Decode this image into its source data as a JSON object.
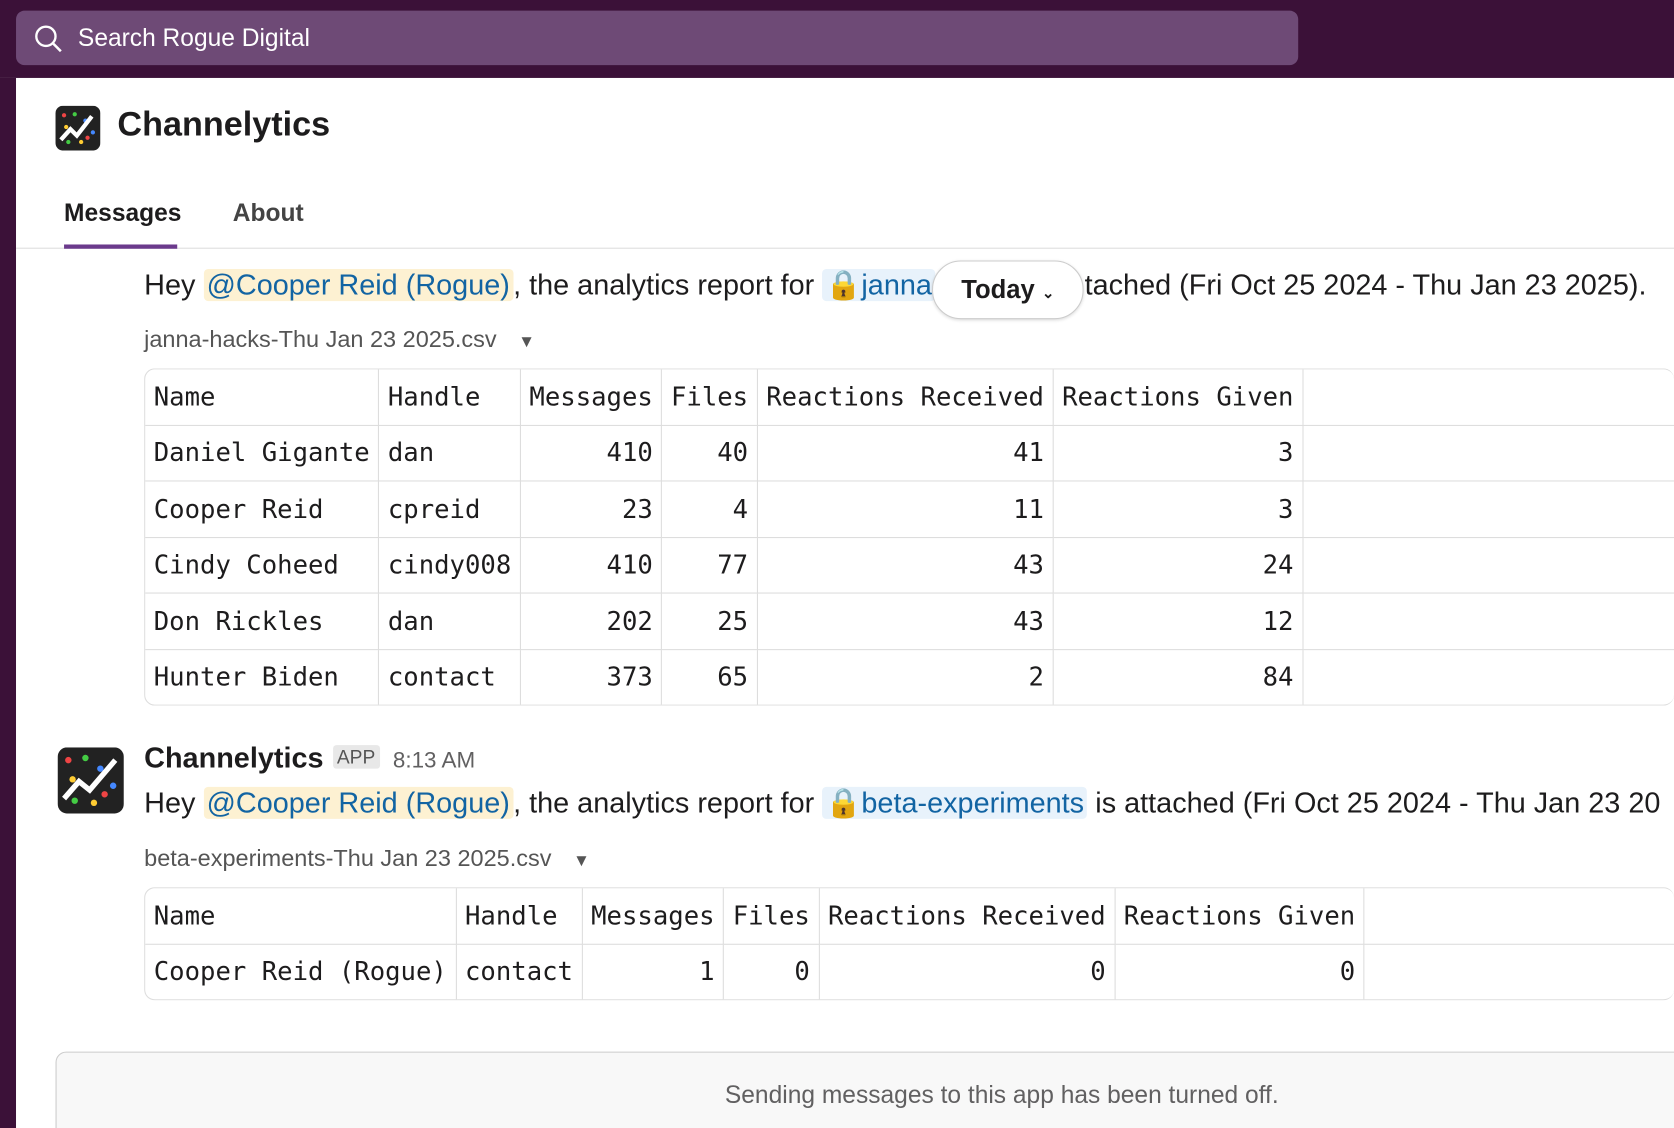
{
  "search": {
    "placeholder": "Search Rogue Digital"
  },
  "app": {
    "name": "Channelytics",
    "tabs": [
      "Messages",
      "About"
    ]
  },
  "date_pill": "Today",
  "messages": [
    {
      "text": {
        "intro": "Hey ",
        "mention": "@Cooper Reid (Rogue)",
        "mid": ", the analytics report for ",
        "channel": "janna",
        "rest": "tached (Fri Oct 25 2024 - Thu Jan 23 2025)."
      },
      "file": "janna-hacks-Thu Jan 23 2025.csv",
      "table": {
        "header": [
          "Name",
          "Handle",
          "Messages",
          "Files",
          "Reactions Received",
          "Reactions Given"
        ],
        "rows": [
          [
            "Daniel Gigante",
            "dan",
            410,
            40,
            41,
            3
          ],
          [
            "Cooper Reid",
            "cpreid",
            23,
            4,
            11,
            3
          ],
          [
            "Cindy Coheed",
            "cindy008",
            410,
            77,
            43,
            24
          ],
          [
            "Don Rickles",
            "dan",
            202,
            25,
            43,
            12
          ],
          [
            "Hunter Biden",
            "contact",
            373,
            65,
            2,
            84
          ]
        ]
      }
    },
    {
      "sender": "Channelytics",
      "badge": "APP",
      "time": "8:13 AM",
      "text": {
        "intro": "Hey ",
        "mention": "@Cooper Reid (Rogue)",
        "mid": ", the analytics report for ",
        "channel": "beta-experiments",
        "rest": " is attached (Fri Oct 25 2024 - Thu Jan 23 20"
      },
      "file": "beta-experiments-Thu Jan 23 2025.csv",
      "table": {
        "header": [
          "Name",
          "Handle",
          "Messages",
          "Files",
          "Reactions Received",
          "Reactions Given"
        ],
        "rows": [
          [
            "Cooper Reid (Rogue)",
            "contact",
            1,
            0,
            0,
            0
          ]
        ]
      }
    }
  ],
  "footer": "Sending messages to this app has been turned off."
}
